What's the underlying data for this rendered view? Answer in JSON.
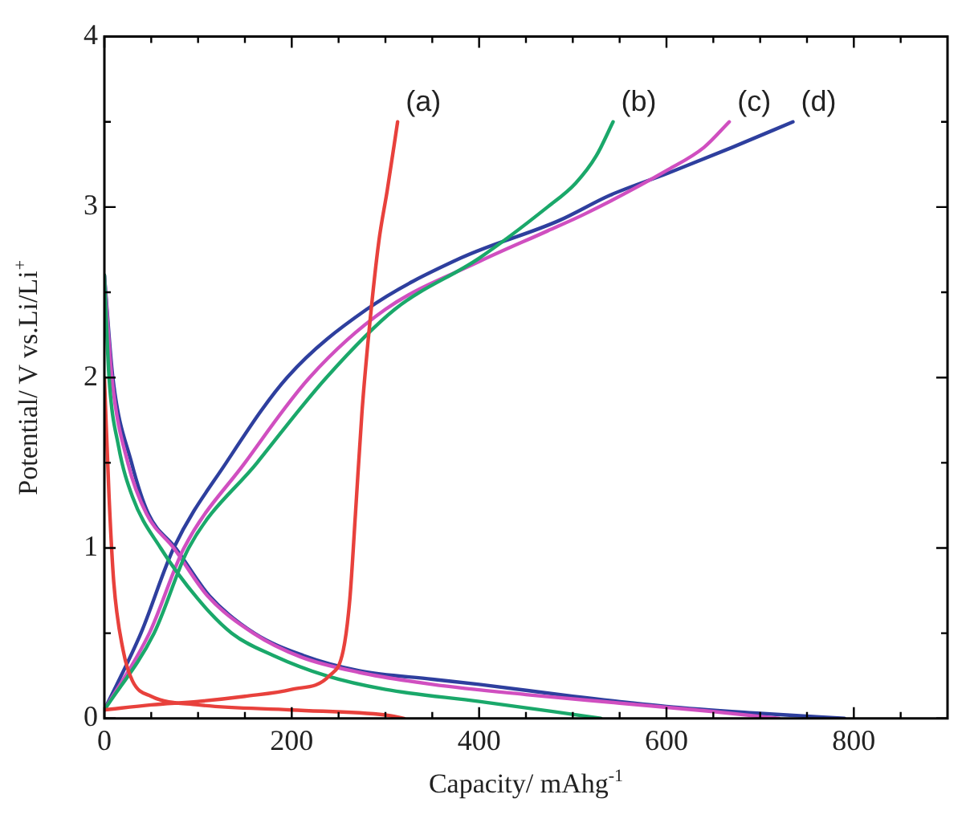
{
  "chart_data": {
    "type": "line",
    "xlabel": "Capacity/ mAhg$^{-1}$",
    "ylabel": "Potential/ V vs.Li/Li$^{+}$",
    "xlim": [
      0,
      900
    ],
    "ylim": [
      0,
      4
    ],
    "xticks": [
      0,
      {
        "value": 50,
        "label": null
      },
      {
        "value": 100,
        "label": null
      },
      {
        "value": 150,
        "label": null
      },
      200,
      {
        "value": 250,
        "label": null
      },
      {
        "value": 300,
        "label": null
      },
      {
        "value": 350,
        "label": null
      },
      400,
      {
        "value": 450,
        "label": null
      },
      {
        "value": 500,
        "label": null
      },
      {
        "value": 550,
        "label": null
      },
      600,
      {
        "value": 650,
        "label": null
      },
      {
        "value": 700,
        "label": null
      },
      {
        "value": 750,
        "label": null
      },
      800,
      {
        "value": 850,
        "label": null
      }
    ],
    "yticks": [
      0,
      {
        "value": 0.5,
        "label": null
      },
      1,
      {
        "value": 1.5,
        "label": null
      },
      2,
      {
        "value": 2.5,
        "label": null
      },
      3,
      {
        "value": 3.5,
        "label": null
      },
      4
    ],
    "grid": false,
    "legend": false,
    "marker": "none",
    "line_style": "solid",
    "series": [
      {
        "name": "(a)",
        "color": "#e8413c",
        "x": [
          0,
          5,
          10,
          20,
          30,
          50,
          100,
          200,
          300,
          320,
          null,
          0,
          50,
          100,
          150,
          200,
          240,
          255,
          262,
          268,
          275,
          283,
          293,
          302,
          313
        ],
        "values": [
          2.0,
          1.3,
          0.8,
          0.4,
          0.22,
          0.13,
          0.08,
          0.05,
          0.02,
          0.0,
          null,
          0.05,
          0.08,
          0.1,
          0.13,
          0.17,
          0.25,
          0.4,
          0.7,
          1.2,
          1.8,
          2.3,
          2.8,
          3.1,
          3.5
        ]
      },
      {
        "name": "(b)",
        "color": "#1aa86a",
        "x": [
          0,
          5,
          15,
          30,
          60,
          100,
          136,
          180,
          237,
          300,
          400,
          480,
          530,
          null,
          0,
          53,
          90,
          163,
          237,
          310,
          400,
          473,
          503,
          525,
          543
        ],
        "values": [
          2.6,
          2.0,
          1.6,
          1.3,
          1.0,
          0.7,
          0.5,
          0.37,
          0.25,
          0.17,
          0.1,
          0.04,
          0.0,
          null,
          0.05,
          0.5,
          1.0,
          1.5,
          2.0,
          2.4,
          2.7,
          3.0,
          3.14,
          3.3,
          3.5
        ]
      },
      {
        "name": "(c)",
        "color": "#d04fc0",
        "x": [
          0,
          8,
          25,
          45,
          74,
          110,
          159,
          210,
          272,
          350,
          450,
          550,
          650,
          720,
          null,
          0,
          48,
          85,
          150,
          219,
          300,
          400,
          473,
          513,
          602,
          640,
          667
        ],
        "values": [
          2.6,
          2.0,
          1.5,
          1.2,
          1.0,
          0.72,
          0.5,
          0.36,
          0.27,
          0.2,
          0.14,
          0.09,
          0.04,
          0.0,
          null,
          0.05,
          0.5,
          1.0,
          1.5,
          2.0,
          2.4,
          2.68,
          2.86,
          2.96,
          3.22,
          3.35,
          3.5
        ]
      },
      {
        "name": "(d)",
        "color": "#2e3f9e",
        "x": [
          0,
          9,
          29,
          47,
          76,
          112,
          160,
          212,
          272,
          350,
          400,
          500,
          600,
          700,
          790,
          null,
          0,
          39,
          74,
          130,
          195,
          280,
          380,
          485,
          540,
          602,
          670,
          735
        ],
        "values": [
          2.6,
          2.0,
          1.5,
          1.2,
          1.0,
          0.72,
          0.5,
          0.37,
          0.28,
          0.23,
          0.2,
          0.13,
          0.07,
          0.03,
          0.0,
          null,
          0.05,
          0.5,
          1.0,
          1.5,
          2.0,
          2.4,
          2.7,
          2.92,
          3.07,
          3.2,
          3.35,
          3.5
        ]
      }
    ]
  }
}
